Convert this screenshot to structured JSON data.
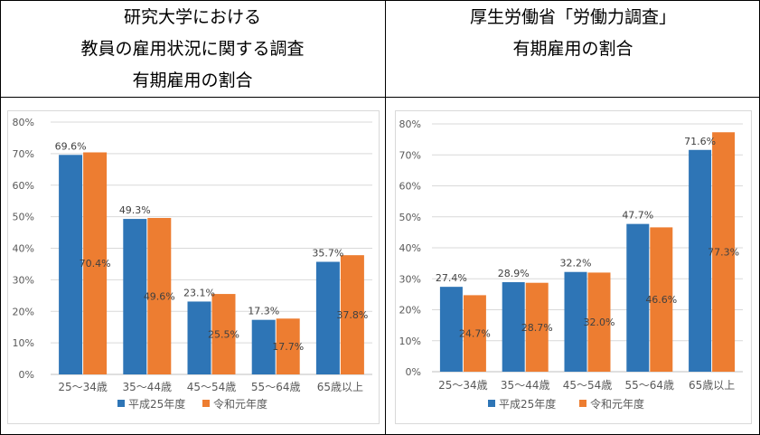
{
  "left": {
    "title_lines": [
      "研究大学における",
      "教員の雇用状況に関する調査",
      "有期雇用の割合"
    ]
  },
  "right": {
    "title_lines": [
      "厚生労働省「労働力調査」",
      "有期雇用の割合"
    ]
  },
  "colors": {
    "series1": "#2e75b6",
    "series2": "#ed7d31",
    "grid": "#d9d9d9",
    "axis_text": "#595959"
  },
  "chart_data": [
    {
      "type": "bar",
      "categories": [
        "25～34歳",
        "35～44歳",
        "45～54歳",
        "55～64歳",
        "65歳以上"
      ],
      "series": [
        {
          "name": "平成25年度",
          "values": [
            69.6,
            49.3,
            23.1,
            17.3,
            35.7
          ],
          "labels": [
            "69.6%",
            "49.3%",
            "23.1%",
            "17.3%",
            "35.7%"
          ]
        },
        {
          "name": "令和元年度",
          "values": [
            70.4,
            49.6,
            25.5,
            17.7,
            37.8
          ],
          "labels": [
            "70.4%",
            "49.6%",
            "25.5%",
            "17.7%",
            "37.8%"
          ]
        }
      ],
      "ylim": [
        0,
        80
      ],
      "y_ticks": [
        "0%",
        "10%",
        "20%",
        "30%",
        "40%",
        "50%",
        "60%",
        "70%",
        "80%"
      ],
      "grid": true,
      "legend": "bottom"
    },
    {
      "type": "bar",
      "categories": [
        "25～34歳",
        "35～44歳",
        "45～54歳",
        "55～64歳",
        "65歳以上"
      ],
      "series": [
        {
          "name": "平成25年度",
          "values": [
            27.4,
            28.9,
            32.2,
            47.7,
            71.6
          ],
          "labels": [
            "27.4%",
            "28.9%",
            "32.2%",
            "47.7%",
            "71.6%"
          ]
        },
        {
          "name": "令和元年度",
          "values": [
            24.7,
            28.7,
            32.0,
            46.6,
            77.3
          ],
          "labels": [
            "24.7%",
            "28.7%",
            "32.0%",
            "46.6%",
            "77.3%"
          ]
        }
      ],
      "ylim": [
        0,
        80
      ],
      "y_ticks": [
        "0%",
        "10%",
        "20%",
        "30%",
        "40%",
        "50%",
        "60%",
        "70%",
        "80%"
      ],
      "grid": true,
      "legend": "bottom"
    }
  ]
}
